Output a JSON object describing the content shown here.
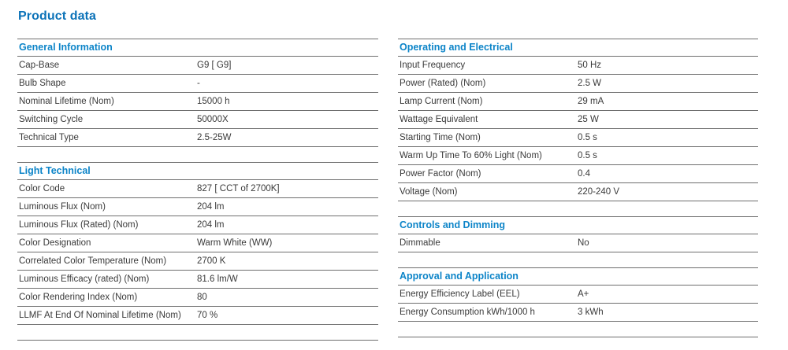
{
  "page_title": "Product data",
  "colors": {
    "title": "#0b72b8",
    "section_header": "#0c84c8",
    "rule": "#6e6e6e",
    "text": "#3a3a3a"
  },
  "columns": [
    {
      "sections": [
        {
          "header": "General Information",
          "rows": [
            {
              "label": "Cap-Base",
              "value": "G9 [ G9]"
            },
            {
              "label": "Bulb Shape",
              "value": "-"
            },
            {
              "label": "Nominal Lifetime (Nom)",
              "value": "15000 h"
            },
            {
              "label": "Switching Cycle",
              "value": "50000X"
            },
            {
              "label": "Technical Type",
              "value": "2.5-25W"
            }
          ]
        },
        {
          "header": "Light Technical",
          "rows": [
            {
              "label": "Color Code",
              "value": "827 [ CCT of 2700K]"
            },
            {
              "label": "Luminous Flux (Nom)",
              "value": "204 lm"
            },
            {
              "label": "Luminous Flux (Rated) (Nom)",
              "value": "204 lm"
            },
            {
              "label": "Color Designation",
              "value": "Warm White (WW)"
            },
            {
              "label": "Correlated Color Temperature (Nom)",
              "value": "2700 K"
            },
            {
              "label": "Luminous Efficacy (rated) (Nom)",
              "value": "81.6 lm/W"
            },
            {
              "label": "Color Rendering Index (Nom)",
              "value": "80"
            },
            {
              "label": "LLMF At End Of Nominal Lifetime (Nom)",
              "value": "70 %"
            }
          ]
        }
      ]
    },
    {
      "sections": [
        {
          "header": "Operating and Electrical",
          "rows": [
            {
              "label": "Input Frequency",
              "value": "50 Hz"
            },
            {
              "label": "Power (Rated) (Nom)",
              "value": "2.5 W"
            },
            {
              "label": "Lamp Current (Nom)",
              "value": "29 mA"
            },
            {
              "label": "Wattage Equivalent",
              "value": "25 W"
            },
            {
              "label": "Starting Time (Nom)",
              "value": "0.5 s"
            },
            {
              "label": "Warm Up Time To 60% Light (Nom)",
              "value": "0.5 s"
            },
            {
              "label": "Power Factor (Nom)",
              "value": "0.4"
            },
            {
              "label": "Voltage (Nom)",
              "value": "220-240 V"
            }
          ]
        },
        {
          "header": "Controls and Dimming",
          "rows": [
            {
              "label": "Dimmable",
              "value": "No"
            }
          ]
        },
        {
          "header": "Approval and Application",
          "rows": [
            {
              "label": "Energy Efficiency Label (EEL)",
              "value": "A+"
            },
            {
              "label": "Energy Consumption kWh/1000 h",
              "value": "3 kWh"
            }
          ]
        }
      ]
    }
  ]
}
